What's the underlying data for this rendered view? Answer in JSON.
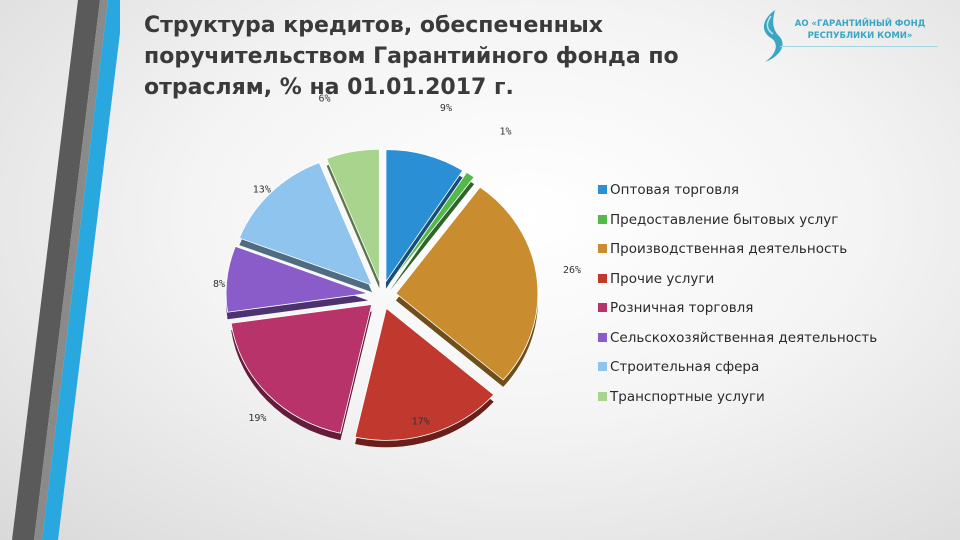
{
  "slide": {
    "title_lines": [
      "Структура кредитов, обеспеченных",
      "поручительством Гарантийного фонда  по",
      "отраслям, % на 01.01.2017 г."
    ],
    "logo_text_lines": [
      "АО «ГАРАНТИЙНЫЙ ФОНД",
      "РЕСПУБЛИКИ КОМИ»"
    ],
    "logo_icon": "stylized-s-leaf-icon",
    "accent_colors": {
      "dark_stripe": "#5a5a5a",
      "blue_stripe": "#29a8e0",
      "logo": "#3aa6c4"
    }
  },
  "chart_data": {
    "type": "pie",
    "title": "",
    "unit": "%",
    "legend_position": "right",
    "exploded": true,
    "categories": [
      "Оптовая торговля",
      "Предоставление бытовых услуг",
      "Производственная деятельность",
      "Прочие услуги",
      "Розничная торговля",
      "Сельскохозяйственная деятельность",
      "Строительная сфера",
      "Транспортные услуги"
    ],
    "values": [
      9,
      1,
      26,
      17,
      19,
      8,
      13,
      6
    ],
    "labels": [
      "9%",
      "1%",
      "26%",
      "17%",
      "19%",
      "8%",
      "13%",
      "6%"
    ],
    "colors": [
      "#2b8fd6",
      "#55b84a",
      "#c98d30",
      "#c0382e",
      "#b8336a",
      "#8a5cc9",
      "#8fc4ef",
      "#a8d48e"
    ]
  }
}
